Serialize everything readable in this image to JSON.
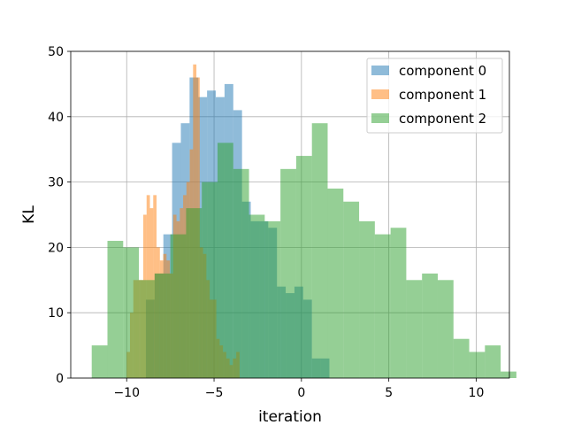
{
  "chart_data": {
    "type": "bar",
    "subtype": "overlapping-histogram",
    "title": "",
    "xlabel": "iteration",
    "ylabel": "KL",
    "xlim": [
      -13.2,
      11.9
    ],
    "ylim": [
      0,
      50
    ],
    "xticks": [
      -10,
      -5,
      0,
      5,
      10
    ],
    "xtick_labels": [
      "−10",
      "−5",
      "0",
      "5",
      "10"
    ],
    "yticks": [
      0,
      10,
      20,
      30,
      40,
      50
    ],
    "ytick_labels": [
      "0",
      "10",
      "20",
      "30",
      "40",
      "50"
    ],
    "grid": true,
    "legend_position": "top-right",
    "opacity": 0.5,
    "series": [
      {
        "name": "component 0",
        "color": "#1f77b4",
        "bin_start": -8.9,
        "bin_width": 0.5,
        "counts": [
          12,
          16,
          22,
          36,
          39,
          46,
          43,
          44,
          43,
          45,
          41,
          27,
          24,
          24,
          23,
          14,
          13,
          14,
          12,
          3,
          3
        ]
      },
      {
        "name": "component 1",
        "color": "#ff7f0e",
        "bin_start": -10.0,
        "bin_width": 0.19,
        "counts": [
          4,
          10,
          15,
          15,
          15,
          25,
          28,
          26,
          28,
          20,
          18,
          19,
          18,
          16,
          25,
          24,
          26,
          28,
          30,
          35,
          48,
          46,
          20,
          19,
          15,
          12,
          12,
          6,
          5,
          4,
          3,
          2,
          3,
          4
        ]
      },
      {
        "name": "component 2",
        "color": "#2ca02c",
        "bin_start": -12.0,
        "bin_width": 0.9,
        "counts": [
          5,
          21,
          20,
          15,
          16,
          22,
          26,
          30,
          36,
          32,
          25,
          24,
          32,
          34,
          39,
          29,
          27,
          24,
          22,
          23,
          15,
          16,
          15,
          6,
          4,
          5,
          1
        ]
      }
    ]
  }
}
